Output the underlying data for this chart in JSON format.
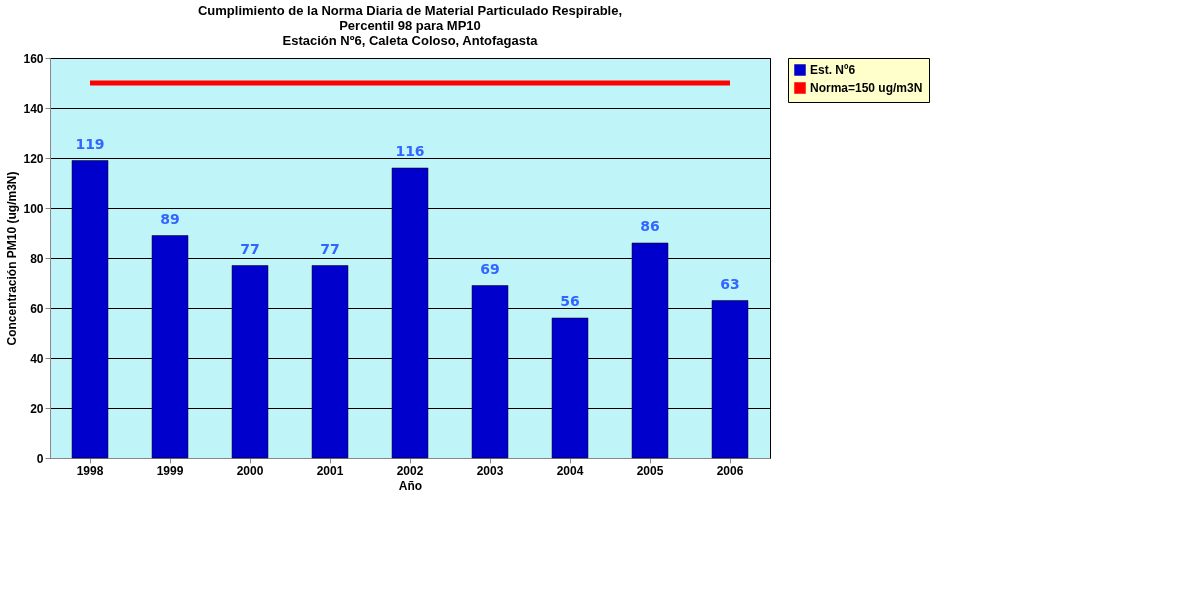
{
  "chart_data": {
    "type": "bar",
    "title": "Cumplimiento de la Norma Diaria de Material Particulado Respirable,\nPercentil 98 para MP10\nEstación Nº6, Caleta Coloso, Antofagasta",
    "xlabel": "Año",
    "ylabel": "Concentración PM10 (ug/m3N)",
    "categories": [
      "1998",
      "1999",
      "2000",
      "2001",
      "2002",
      "2003",
      "2004",
      "2005",
      "2006"
    ],
    "series": [
      {
        "name": "Est. Nº6",
        "color": "#0000cc",
        "values": [
          119,
          89,
          77,
          77,
          116,
          69,
          56,
          86,
          63
        ],
        "value_labels": [
          "119",
          "89",
          "77",
          "77",
          "116",
          "69",
          "56",
          "86",
          "63"
        ]
      },
      {
        "name": "Norma=150 ug/m3N",
        "type": "line",
        "color": "#ff0000",
        "values": [
          150,
          150,
          150,
          150,
          150,
          150,
          150,
          150,
          150
        ]
      }
    ],
    "ylim": [
      0,
      160
    ],
    "yticks": [
      0,
      20,
      40,
      60,
      80,
      100,
      120,
      140,
      160
    ],
    "grid": "y",
    "legend": "right"
  }
}
